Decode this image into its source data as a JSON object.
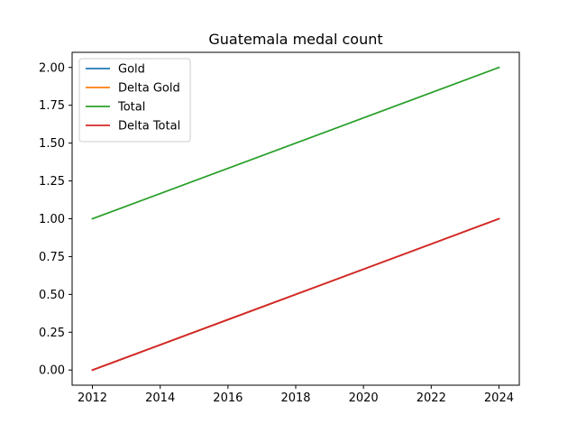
{
  "chart_data": {
    "type": "line",
    "title": "Guatemala medal count",
    "xlabel": "",
    "ylabel": "",
    "x": [
      2012,
      2024
    ],
    "xlim": [
      2011.4,
      2024.6
    ],
    "ylim": [
      -0.1,
      2.1
    ],
    "xticks": [
      2012,
      2014,
      2016,
      2018,
      2020,
      2022,
      2024
    ],
    "yticks": [
      0.0,
      0.25,
      0.5,
      0.75,
      1.0,
      1.25,
      1.5,
      1.75,
      2.0
    ],
    "ytick_labels": [
      "0.00",
      "0.25",
      "0.50",
      "0.75",
      "1.00",
      "1.25",
      "1.50",
      "1.75",
      "2.00"
    ],
    "grid": false,
    "legend_position": "top-left",
    "series": [
      {
        "name": "Gold",
        "values": [
          0,
          1
        ],
        "color": "#1f77b4"
      },
      {
        "name": "Delta Gold",
        "values": [
          0,
          1
        ],
        "color": "#ff7f0e"
      },
      {
        "name": "Total",
        "values": [
          1,
          2
        ],
        "color": "#2ca02c"
      },
      {
        "name": "Delta Total",
        "values": [
          0,
          1
        ],
        "color": "#d62728"
      }
    ]
  }
}
